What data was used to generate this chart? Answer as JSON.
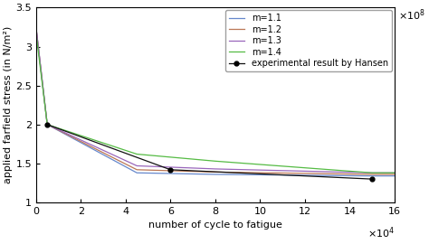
{
  "title": "",
  "xlabel": "number of cycle to fatigue",
  "ylabel": "applied farfield stress (in N/m²)",
  "xlim": [
    0,
    160000
  ],
  "ylim": [
    100000000.0,
    350000000.0
  ],
  "legend_entries": [
    "m=1.1",
    "m=1.2",
    "m=1.3",
    "m=1.4",
    "experimental result by Hansen"
  ],
  "line_colors": [
    "#6688cc",
    "#bb7755",
    "#9966bb",
    "#55bb44",
    "#111111"
  ],
  "curves": {
    "m1.1": {
      "x": [
        0,
        100,
        5000,
        45000,
        80000,
        150000,
        160000
      ],
      "y": [
        322000000.0,
        322000000.0,
        200000000.0,
        138000000.0,
        136000000.0,
        134000000.0,
        134000000.0
      ]
    },
    "m1.2": {
      "x": [
        0,
        100,
        5000,
        45000,
        80000,
        150000,
        160000
      ],
      "y": [
        322000000.0,
        322000000.0,
        200000000.0,
        142000000.0,
        139000000.0,
        136000000.0,
        136000000.0
      ]
    },
    "m1.3": {
      "x": [
        0,
        100,
        5000,
        45000,
        80000,
        150000,
        160000
      ],
      "y": [
        322000000.0,
        322000000.0,
        200000000.0,
        147000000.0,
        143000000.0,
        138000000.0,
        138000000.0
      ]
    },
    "m1.4": {
      "x": [
        0,
        100,
        5000,
        45000,
        80000,
        150000,
        160000
      ],
      "y": [
        315000000.0,
        315000000.0,
        200000000.0,
        162000000.0,
        153000000.0,
        138000000.0,
        138000000.0
      ]
    }
  },
  "experimental": {
    "x": [
      5000,
      60000,
      150000
    ],
    "y": [
      200000000.0,
      142000000.0,
      130000000.0
    ]
  },
  "xticks": [
    0,
    20000,
    40000,
    60000,
    80000,
    100000,
    120000,
    140000,
    160000
  ],
  "xticklabels": [
    "0",
    "2",
    "4",
    "6",
    "8",
    "10",
    "12",
    "14",
    "16"
  ],
  "yticks": [
    100000000.0,
    150000000.0,
    200000000.0,
    250000000.0,
    300000000.0,
    350000000.0
  ],
  "yticklabels": [
    "1",
    "1.5",
    "2",
    "2.5",
    "3",
    "3.5"
  ]
}
